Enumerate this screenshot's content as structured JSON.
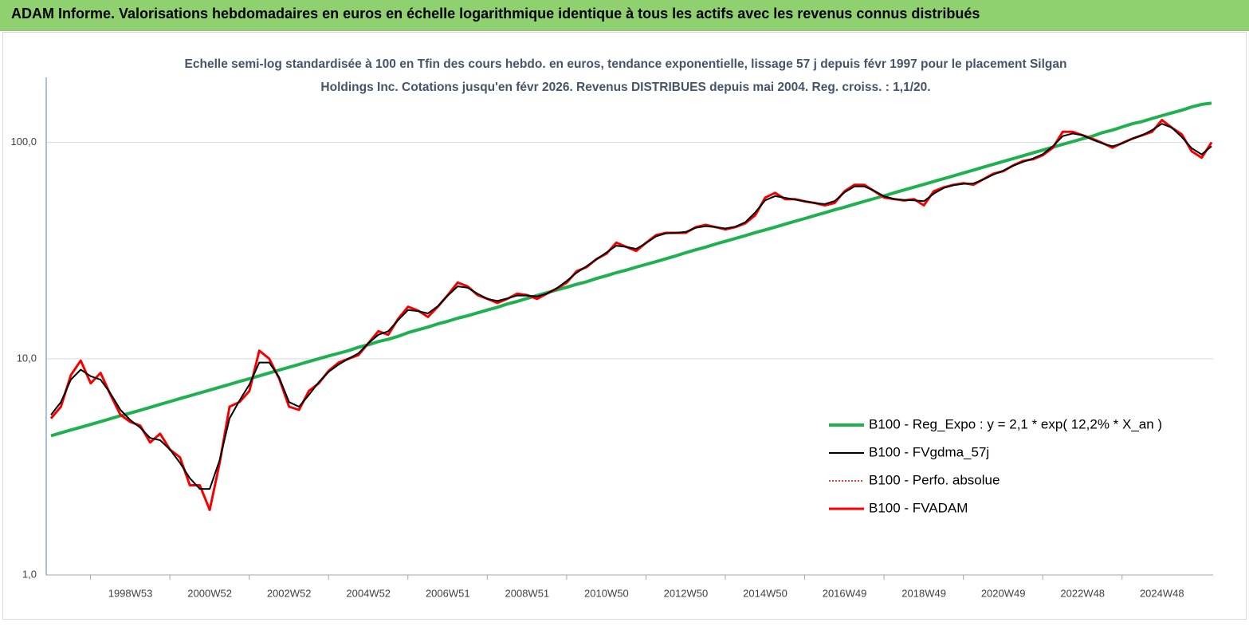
{
  "chart_data": {
    "type": "line",
    "title": "ADAM Informe. Valorisations hebdomadaires en euros en échelle logarithmique identique à tous les actifs avec les revenus connus distribués",
    "subtitle": "Echelle semi-log standardisée à 100 en Tfin des cours hebdo. en euros, tendance exponentielle, lissage 57 j depuis févr 1997 pour le placement Silgan Holdings Inc. Cotations jusqu'en févr 2026. Revenus DISTRIBUES depuis mai 2004. Reg. croiss. : 1,1/20.",
    "log_scale": true,
    "grid": true,
    "legend": "right",
    "ylim": [
      1,
      200
    ],
    "yticks": [
      {
        "value": 1,
        "label": "1,0"
      },
      {
        "value": 10,
        "label": "10,0"
      },
      {
        "value": 100,
        "label": "100,0"
      }
    ],
    "categories": [
      null,
      null,
      null,
      null,
      null,
      null,
      null,
      null,
      "1998W53",
      null,
      null,
      null,
      null,
      null,
      null,
      null,
      "2000W52",
      null,
      null,
      null,
      null,
      null,
      null,
      null,
      "2002W52",
      null,
      null,
      null,
      null,
      null,
      null,
      null,
      "2004W52",
      null,
      null,
      null,
      null,
      null,
      null,
      null,
      "2006W51",
      null,
      null,
      null,
      null,
      null,
      null,
      null,
      "2008W51",
      null,
      null,
      null,
      null,
      null,
      null,
      null,
      "2010W50",
      null,
      null,
      null,
      null,
      null,
      null,
      null,
      "2012W50",
      null,
      null,
      null,
      null,
      null,
      null,
      null,
      "2014W50",
      null,
      null,
      null,
      null,
      null,
      null,
      null,
      "2016W49",
      null,
      null,
      null,
      null,
      null,
      null,
      null,
      "2018W49",
      null,
      null,
      null,
      null,
      null,
      null,
      null,
      "2020W49",
      null,
      null,
      null,
      null,
      null,
      null,
      null,
      "2022W48",
      null,
      null,
      null,
      null,
      null,
      null,
      null,
      "2024W48",
      null,
      null,
      null,
      null,
      null
    ],
    "series": [
      {
        "name": "B100 - Reg_Expo : y = 2,1 * exp( 12,2% *  X_an )",
        "color": "#1fb050",
        "style": "solid",
        "width": 4,
        "values": [
          4.4,
          4.54,
          4.68,
          4.82,
          4.97,
          5.12,
          5.28,
          5.45,
          5.61,
          5.78,
          5.96,
          6.15,
          6.34,
          6.54,
          6.74,
          6.95,
          7.16,
          7.38,
          7.61,
          7.85,
          8.08,
          8.33,
          8.59,
          8.86,
          9.13,
          9.41,
          9.71,
          10.0,
          10.3,
          10.6,
          10.9,
          11.3,
          11.6,
          12.0,
          12.3,
          12.7,
          13.2,
          13.6,
          14.0,
          14.5,
          14.9,
          15.4,
          15.8,
          16.3,
          16.8,
          17.3,
          17.9,
          18.4,
          19.0,
          19.6,
          20.2,
          20.8,
          21.4,
          22.1,
          22.7,
          23.5,
          24.2,
          25.0,
          25.7,
          26.5,
          27.3,
          28.1,
          29.0,
          29.9,
          30.9,
          31.9,
          32.8,
          33.9,
          34.9,
          36.0,
          37.1,
          38.3,
          39.4,
          40.6,
          41.9,
          43.2,
          44.5,
          45.9,
          47.3,
          48.8,
          50.2,
          51.8,
          53.4,
          55.0,
          56.7,
          58.5,
          60.3,
          62.1,
          64.0,
          66.0,
          68.0,
          70.1,
          72.3,
          74.5,
          76.9,
          79.2,
          81.7,
          84.2,
          86.8,
          89.5,
          92.2,
          95.1,
          98.0,
          101,
          104,
          107,
          111,
          114,
          118,
          122,
          125,
          129,
          133,
          137,
          141,
          146,
          150,
          152
        ]
      },
      {
        "name": "B100 - FVgdma_57j",
        "color": "#000000",
        "style": "solid",
        "width": 2,
        "values": [
          5.5,
          6.3,
          8.0,
          8.9,
          8.3,
          8.0,
          6.9,
          5.8,
          5.2,
          4.8,
          4.3,
          4.2,
          3.8,
          3.3,
          2.8,
          2.5,
          2.5,
          3.4,
          5.3,
          6.4,
          7.6,
          9.6,
          9.6,
          8.2,
          6.3,
          6.0,
          6.8,
          7.8,
          8.7,
          9.4,
          10.0,
          10.6,
          11.8,
          12.9,
          13.4,
          15.1,
          16.8,
          16.6,
          16.2,
          17.5,
          19.6,
          21.6,
          21.3,
          20.0,
          18.9,
          18.5,
          19.0,
          19.6,
          19.6,
          19.4,
          20.0,
          21.2,
          22.9,
          25.0,
          26.8,
          28.8,
          31.0,
          33.3,
          32.9,
          32.2,
          34.3,
          36.8,
          38.0,
          38.2,
          38.6,
          40.3,
          41.0,
          40.6,
          40.0,
          40.8,
          42.8,
          47.5,
          54.0,
          56.5,
          55.5,
          54.4,
          53.4,
          52.4,
          51.9,
          53.6,
          58.8,
          62.6,
          62.6,
          59.8,
          56.4,
          54.8,
          54.2,
          54.0,
          53.5,
          58.0,
          61.6,
          63.4,
          64.4,
          64.6,
          67.4,
          71.0,
          74.1,
          78.0,
          81.4,
          84.3,
          88.3,
          96.0,
          107,
          110,
          108,
          103,
          99.0,
          96.0,
          99.0,
          104,
          108,
          114,
          122,
          117,
          106,
          94,
          88,
          96
        ]
      },
      {
        "name": "B100 - Perfo. absolue",
        "color": "#e00000",
        "style": "dotted",
        "width": 1.5,
        "values": [
          5.3,
          6.0,
          8.4,
          9.8,
          7.7,
          8.6,
          6.8,
          5.5,
          5.1,
          4.9,
          4.1,
          4.5,
          3.8,
          3.5,
          2.6,
          2.6,
          2.0,
          3.3,
          6.0,
          6.3,
          7.1,
          10.9,
          10.0,
          8.1,
          6.0,
          5.8,
          7.1,
          7.7,
          8.8,
          9.6,
          10.0,
          10.4,
          11.8,
          13.4,
          12.9,
          15.3,
          17.4,
          16.7,
          15.6,
          17.4,
          19.7,
          22.5,
          21.6,
          19.7,
          18.9,
          18.1,
          18.9,
          20.0,
          19.7,
          18.9,
          20.0,
          21.1,
          22.5,
          25.4,
          26.5,
          28.9,
          30.6,
          34.4,
          32.9,
          31.5,
          34.4,
          37.3,
          38.2,
          38.2,
          38.2,
          40.6,
          41.6,
          40.6,
          39.6,
          40.6,
          42.3,
          46.1,
          55.6,
          58.5,
          54.7,
          54.7,
          53.4,
          52.5,
          51.2,
          52.5,
          59.5,
          63.7,
          63.7,
          59.5,
          55.6,
          54.7,
          53.9,
          54.7,
          51.2,
          59.5,
          62.0,
          63.7,
          64.8,
          63.7,
          67.6,
          71.7,
          73.6,
          78.3,
          82.1,
          83.6,
          87.3,
          94.5,
          112,
          112,
          108,
          104,
          99.4,
          94.5,
          99.4,
          104,
          108,
          112,
          127,
          117,
          109,
          91,
          85,
          100
        ]
      },
      {
        "name": "B100 - FVADAM",
        "color": "#ff0000",
        "style": "solid",
        "width": 3,
        "values": [
          5.3,
          6.0,
          8.4,
          9.8,
          7.7,
          8.6,
          6.8,
          5.5,
          5.1,
          4.9,
          4.1,
          4.5,
          3.8,
          3.5,
          2.6,
          2.6,
          2.0,
          3.3,
          6.0,
          6.3,
          7.1,
          10.9,
          10.0,
          8.1,
          6.0,
          5.8,
          7.1,
          7.7,
          8.8,
          9.6,
          10.0,
          10.4,
          11.8,
          13.4,
          12.9,
          15.3,
          17.4,
          16.7,
          15.6,
          17.4,
          19.7,
          22.5,
          21.6,
          19.7,
          18.9,
          18.1,
          18.9,
          20.0,
          19.7,
          18.9,
          20.0,
          21.1,
          22.5,
          25.4,
          26.5,
          28.9,
          30.6,
          34.4,
          32.9,
          31.5,
          34.4,
          37.3,
          38.2,
          38.2,
          38.2,
          40.6,
          41.6,
          40.6,
          39.6,
          40.6,
          42.3,
          46.1,
          55.6,
          58.5,
          54.7,
          54.7,
          53.4,
          52.5,
          51.2,
          52.5,
          59.5,
          63.7,
          63.7,
          59.5,
          55.6,
          54.7,
          53.9,
          54.7,
          51.2,
          59.5,
          62.0,
          63.7,
          64.8,
          63.7,
          67.6,
          71.7,
          73.6,
          78.3,
          82.1,
          83.6,
          87.3,
          94.5,
          112,
          112,
          108,
          104,
          99.4,
          94.5,
          99.4,
          104,
          108,
          112,
          127,
          117,
          109,
          91,
          85,
          100
        ]
      }
    ]
  }
}
